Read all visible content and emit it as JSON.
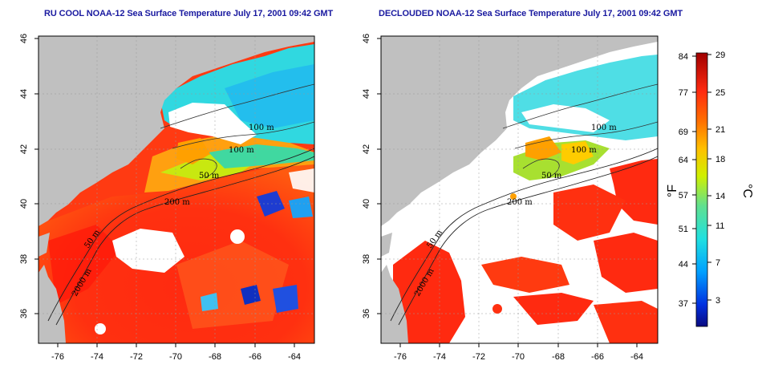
{
  "panels": {
    "left": {
      "title": "RU COOL NOAA-12 Sea Surface Temperature July 17, 2001 09:42 GMT"
    },
    "right": {
      "title": "DECLOUDED NOAA-12 Sea Surface Temperature July 17, 2001 09:42 GMT"
    }
  },
  "axes": {
    "lon_ticks": [
      "-76",
      "-74",
      "-72",
      "-70",
      "-68",
      "-66",
      "-64"
    ],
    "lat_ticks": [
      "36",
      "38",
      "40",
      "42",
      "44",
      "46"
    ]
  },
  "contours": {
    "c100a": "100 m",
    "c100b": "100 m",
    "c50": "50 m",
    "c200": "200 m",
    "c50b": "50 m",
    "c2000": "2000 m"
  },
  "colorbar": {
    "fahrenheit_ticks": [
      "84",
      "77",
      "69",
      "64",
      "57",
      "51",
      "44",
      "37"
    ],
    "celsius_ticks": [
      "29",
      "25",
      "21",
      "18",
      "14",
      "11",
      "7",
      "3"
    ],
    "fahrenheit_unit": "°F",
    "celsius_unit": "°C"
  },
  "colors": {
    "land": "#c0c0c0",
    "cloud": "#ffffff",
    "title": "#1a1aa0"
  }
}
